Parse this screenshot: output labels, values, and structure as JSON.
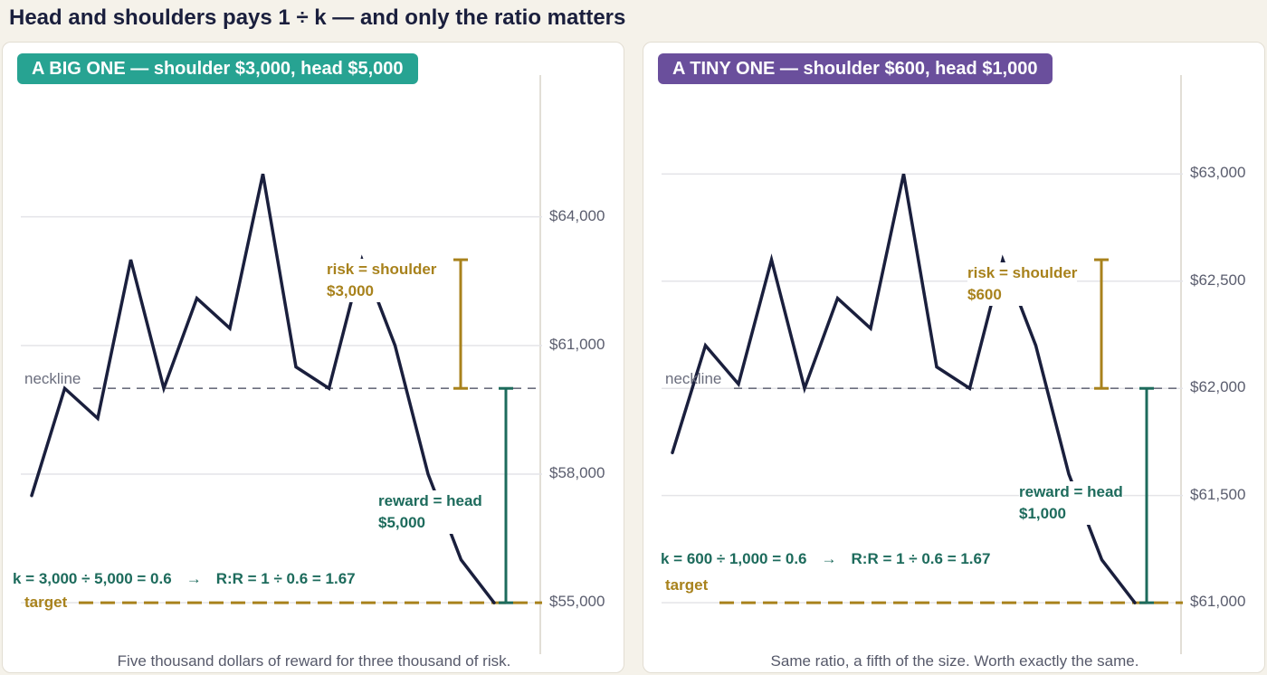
{
  "title": "Head and shoulders pays 1 ÷ k — and only the ratio matters",
  "colors": {
    "price": "#1a1f3d",
    "risk": "#a8821c",
    "reward": "#1d6b5c",
    "neckline": "#6b6e7e",
    "grid": "#e4e4e8",
    "axis": "#d8d4c8"
  },
  "panels": [
    {
      "badge": "A BIG ONE — shoulder $3,000, head $5,000",
      "badge_color": "#27a392",
      "caption": "Five thousand dollars of reward for three thousand of risk.",
      "neckline_label": "neckline",
      "target_label": "target",
      "risk_label": [
        "risk = shoulder",
        "$3,000"
      ],
      "reward_label": [
        "reward = head",
        "$5,000"
      ],
      "formula_k": "k = 3,000 ÷ 5,000 = 0.6",
      "formula_arrow": "→",
      "formula_rr": "R:R = 1 ÷ 0.6 = 1.67",
      "yticks": [
        {
          "value": 64000,
          "label": "$64,000"
        },
        {
          "value": 61000,
          "label": "$61,000"
        },
        {
          "value": 58000,
          "label": "$58,000"
        },
        {
          "value": 55000,
          "label": "$55,000"
        }
      ]
    },
    {
      "badge": "A TINY ONE — shoulder $600, head $1,000",
      "badge_color": "#6a4f9c",
      "caption": "Same ratio, a fifth of the size. Worth exactly the same.",
      "neckline_label": "neckline",
      "target_label": "target",
      "risk_label": [
        "risk = shoulder",
        "$600"
      ],
      "reward_label": [
        "reward = head",
        "$1,000"
      ],
      "formula_k": "k = 600 ÷ 1,000 = 0.6",
      "formula_arrow": "→",
      "formula_rr": "R:R = 1 ÷ 0.6 = 1.67",
      "yticks": [
        {
          "value": 63000,
          "label": "$63,000"
        },
        {
          "value": 62500,
          "label": "$62,500"
        },
        {
          "value": 62000,
          "label": "$62,000"
        },
        {
          "value": 61500,
          "label": "$61,500"
        },
        {
          "value": 61000,
          "label": "$61,000"
        }
      ]
    }
  ],
  "chart_data": [
    {
      "type": "line",
      "title": "A BIG ONE — shoulder $3,000, head $5,000",
      "x": [
        0,
        1,
        2,
        3,
        4,
        5,
        6,
        7,
        8,
        9,
        10,
        11,
        12,
        13,
        14
      ],
      "series": [
        {
          "values": [
            57500,
            60000,
            59300,
            63000,
            60000,
            62100,
            61400,
            65000,
            60500,
            60000,
            63000,
            61000,
            58000,
            56000,
            55000
          ]
        }
      ],
      "neckline": 60000,
      "target": 55000,
      "shoulder": 3000,
      "head": 5000,
      "ylim": [
        53800,
        66800
      ]
    },
    {
      "type": "line",
      "title": "A TINY ONE — shoulder $600, head $1,000",
      "x": [
        0,
        1,
        2,
        3,
        4,
        5,
        6,
        7,
        8,
        9,
        10,
        11,
        12,
        13,
        14
      ],
      "series": [
        {
          "values": [
            61700,
            62200,
            62020,
            62600,
            62000,
            62420,
            62280,
            63000,
            62100,
            62000,
            62600,
            62200,
            61600,
            61200,
            61000
          ]
        }
      ],
      "neckline": 62000,
      "target": 61000,
      "shoulder": 600,
      "head": 1000,
      "ylim": [
        60760,
        63360
      ]
    }
  ]
}
